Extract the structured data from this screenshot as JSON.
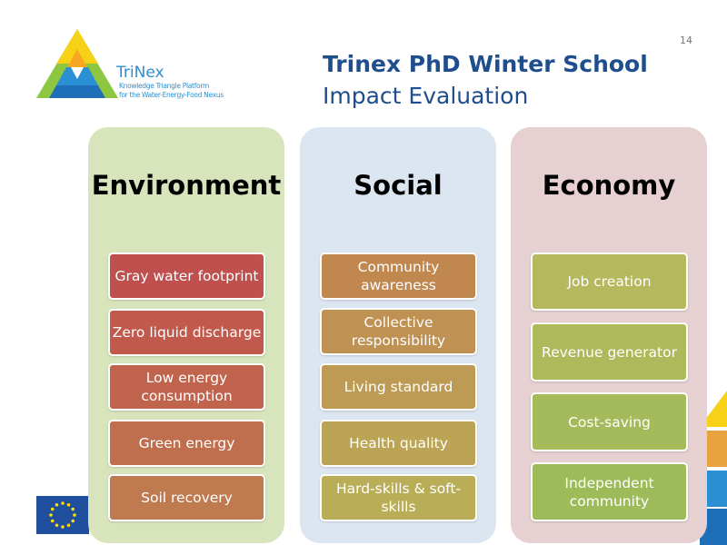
{
  "slide_number": "14",
  "logo": {
    "name": "TriNex",
    "tagline_1": "Knowledge Triangle Platform",
    "tagline_2": "for the Water-Energy-Food Nexus"
  },
  "header": {
    "title": "Trinex PhD Winter School",
    "subtitle": "Impact Evaluation"
  },
  "columns": [
    {
      "title": "Environment",
      "panel_color": "#d8e4bc",
      "items": [
        {
          "label": "Gray water footprint",
          "color": "#c0504d"
        },
        {
          "label": "Zero liquid discharge",
          "color": "#c15a4d"
        },
        {
          "label": "Low energy consumption",
          "color": "#c0644e"
        },
        {
          "label": "Green energy",
          "color": "#c06f4e"
        },
        {
          "label": "Soil recovery",
          "color": "#bf7a4f"
        }
      ]
    },
    {
      "title": "Social",
      "panel_color": "#dce6f1",
      "items": [
        {
          "label": "Community awareness",
          "color": "#c0874f"
        },
        {
          "label": "Collective responsibility",
          "color": "#bf9152"
        },
        {
          "label": "Living standard",
          "color": "#bd9b54"
        },
        {
          "label": "Health quality",
          "color": "#bba455"
        },
        {
          "label": "Hard-skills & soft-skills",
          "color": "#b9ad57"
        }
      ]
    },
    {
      "title": "Economy",
      "panel_color": "#e6d0d1",
      "items": [
        {
          "label": "Job creation",
          "color": "#b5b85c"
        },
        {
          "label": "Revenue generator",
          "color": "#aeb95b"
        },
        {
          "label": "Cost-saving",
          "color": "#a5ba5a"
        },
        {
          "label": "Independent community",
          "color": "#9dbb59"
        }
      ]
    }
  ]
}
